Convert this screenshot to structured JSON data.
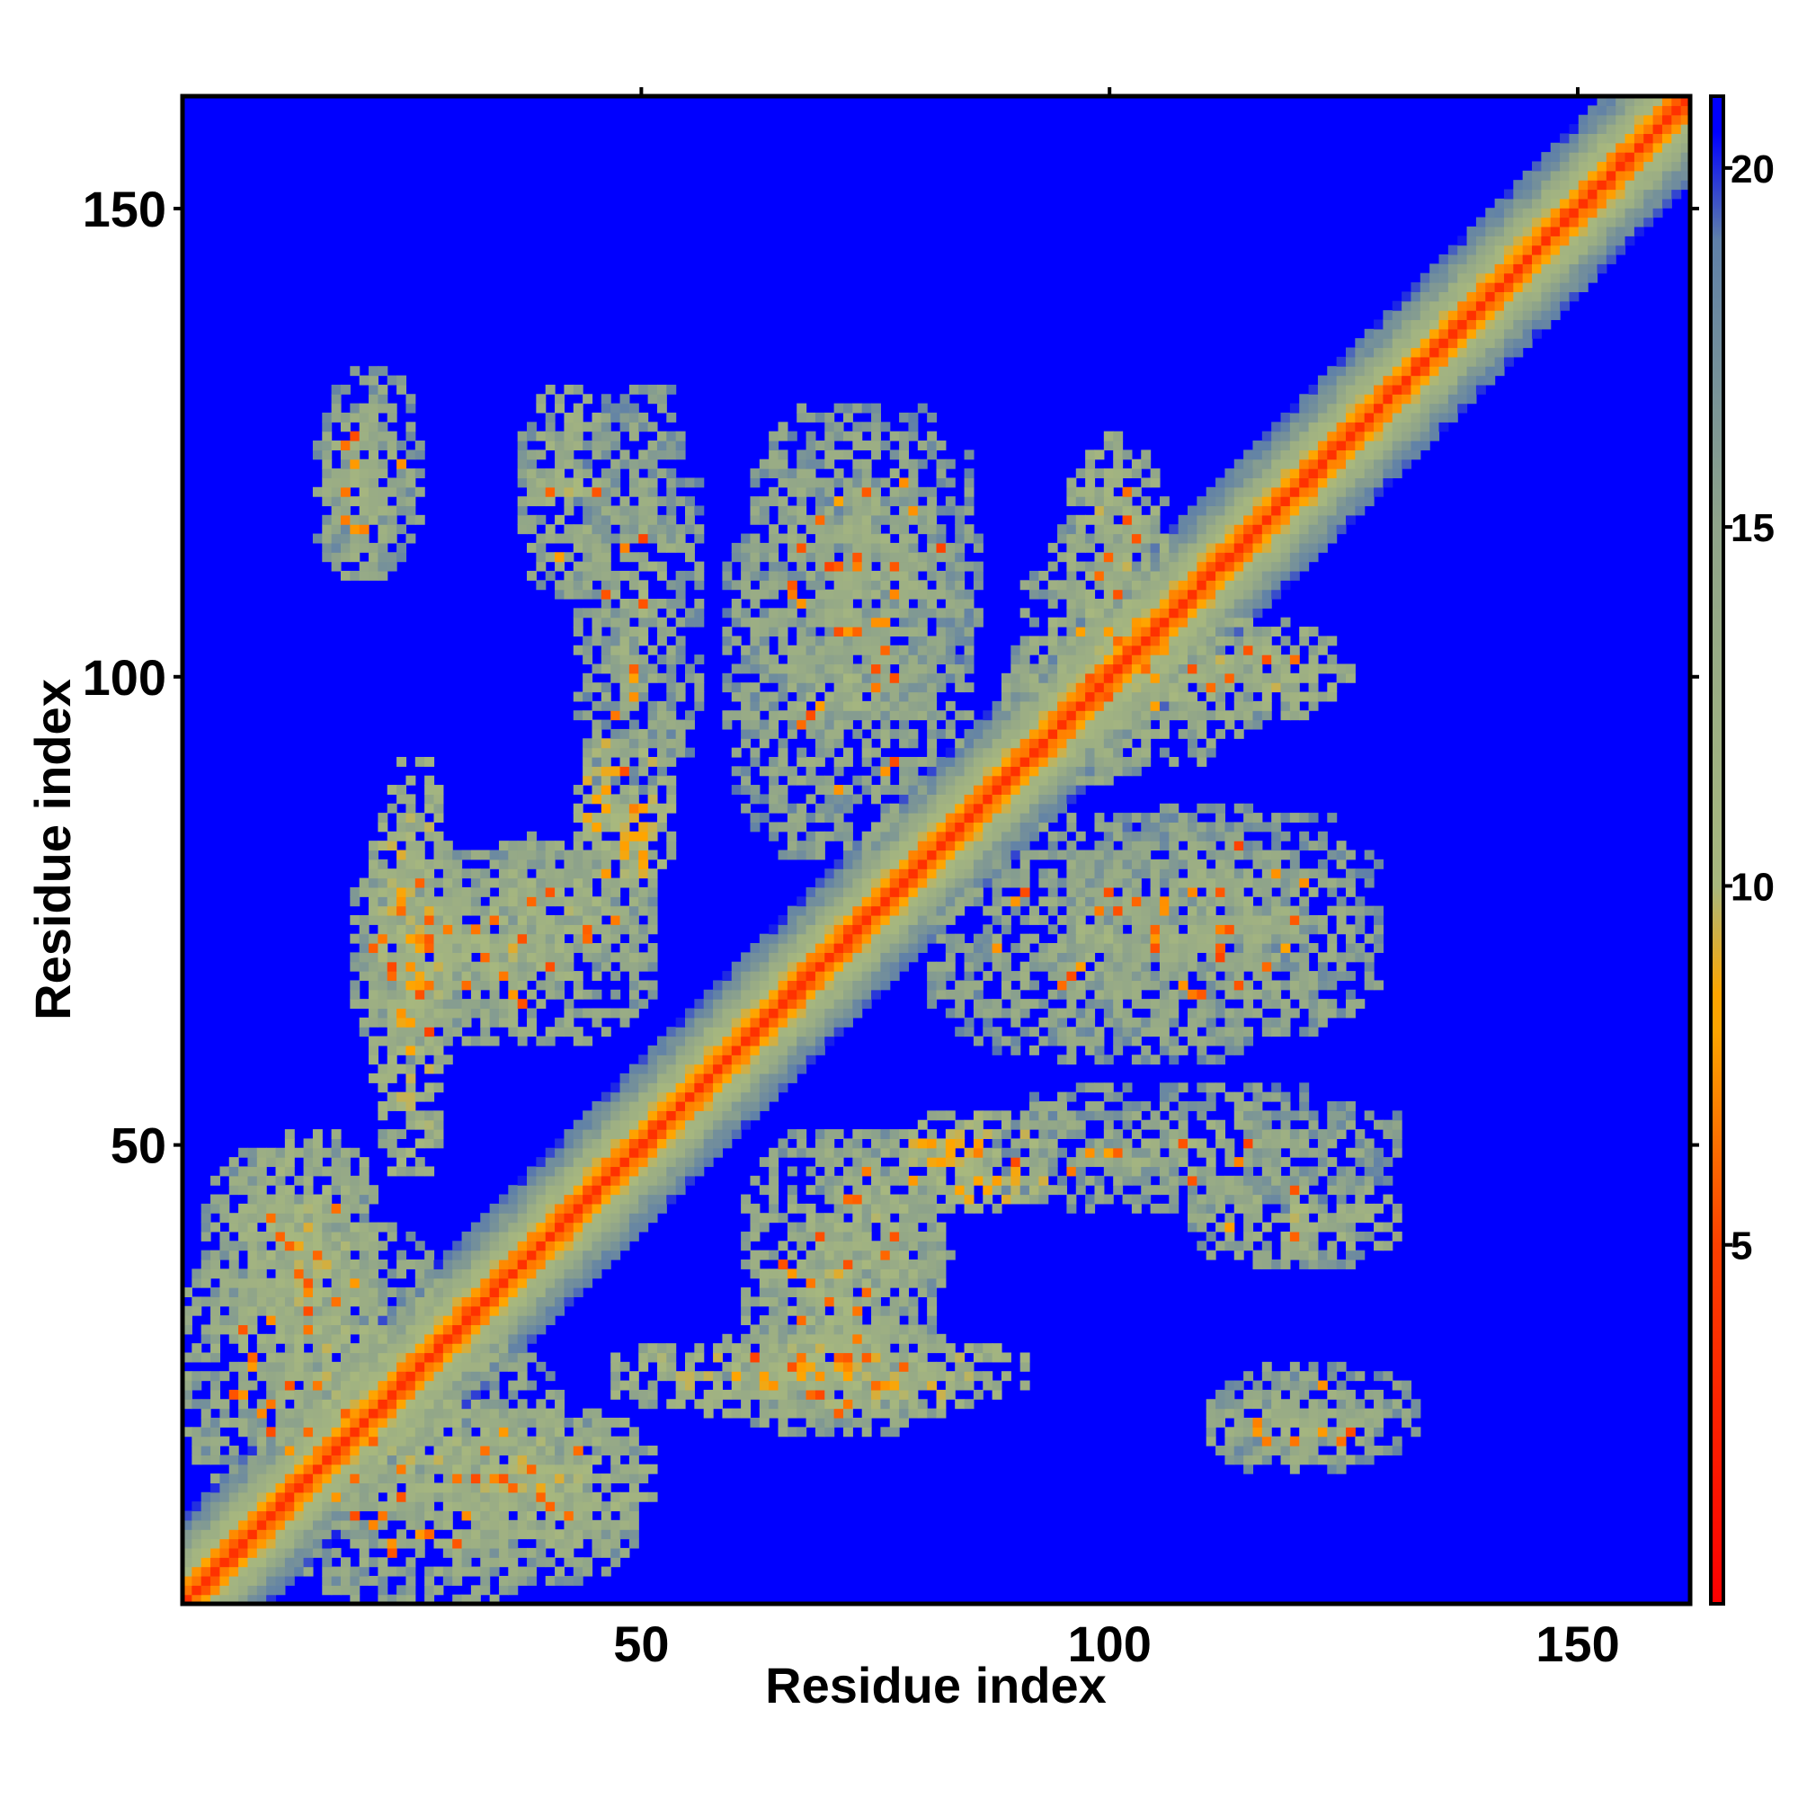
{
  "chart_data": {
    "type": "heatmap",
    "title": "",
    "xlabel": "Residue index",
    "ylabel": "Residue index",
    "xlim": [
      1,
      162
    ],
    "ylim": [
      1,
      162
    ],
    "xticks": [
      50,
      100,
      150
    ],
    "yticks": [
      50,
      100,
      150
    ],
    "matrix_size": 162,
    "symmetric": true,
    "diagonal_value": 3.8,
    "background_value": 21,
    "colorbar": {
      "ticks": [
        5,
        10,
        15,
        20
      ],
      "range": [
        0,
        21
      ],
      "stops": [
        {
          "value": 0,
          "color": "#ff0000"
        },
        {
          "value": 5,
          "color": "#ff4000"
        },
        {
          "value": 8,
          "color": "#ffa500"
        },
        {
          "value": 8.5,
          "color": "#ffa500"
        },
        {
          "value": 10,
          "color": "#a8b87e"
        },
        {
          "value": 15,
          "color": "#8fa48a"
        },
        {
          "value": 19,
          "color": "#5f80a8"
        },
        {
          "value": 20.5,
          "color": "#0000ff"
        },
        {
          "value": 21,
          "color": "#0000ff"
        }
      ]
    },
    "contact_regions": [
      {
        "x": [
          6,
          20
        ],
        "y": [
          25,
          50
        ],
        "value": 11
      },
      {
        "x": [
          14,
          22
        ],
        "y": [
          110,
          128
        ],
        "value": 12
      },
      {
        "x": [
          36,
          46
        ],
        "y": [
          108,
          130
        ],
        "value": 12
      },
      {
        "x": [
          18,
          30
        ],
        "y": [
          58,
          82
        ],
        "value": 12
      },
      {
        "x": [
          30,
          50
        ],
        "y": [
          68,
          82
        ],
        "value": 12
      },
      {
        "x": [
          42,
          52
        ],
        "y": [
          76,
          92
        ],
        "value": 9
      },
      {
        "x": [
          58,
          84
        ],
        "y": [
          80,
          120
        ],
        "value": 13
      },
      {
        "x": [
          90,
          105
        ],
        "y": [
          88,
          115
        ],
        "value": 12
      },
      {
        "x": [
          96,
          128
        ],
        "y": [
          60,
          85
        ],
        "value": 13
      },
      {
        "x": [
          85,
          130
        ],
        "y": [
          42,
          55
        ],
        "value": 13
      },
      {
        "x": [
          60,
          80
        ],
        "y": [
          20,
          50
        ],
        "value": 12
      },
      {
        "x": [
          46,
          90
        ],
        "y": [
          20,
          28
        ],
        "value": 10
      },
      {
        "x": [
          110,
          132
        ],
        "y": [
          15,
          25
        ],
        "value": 13
      },
      {
        "x": [
          30,
          48
        ],
        "y": [
          2,
          20
        ],
        "value": 12
      },
      {
        "x": [
          0,
          30
        ],
        "y": [
          10,
          40
        ],
        "value": 12
      },
      {
        "x": [
          105,
          125
        ],
        "y": [
          95,
          105
        ],
        "value": 11
      }
    ]
  }
}
